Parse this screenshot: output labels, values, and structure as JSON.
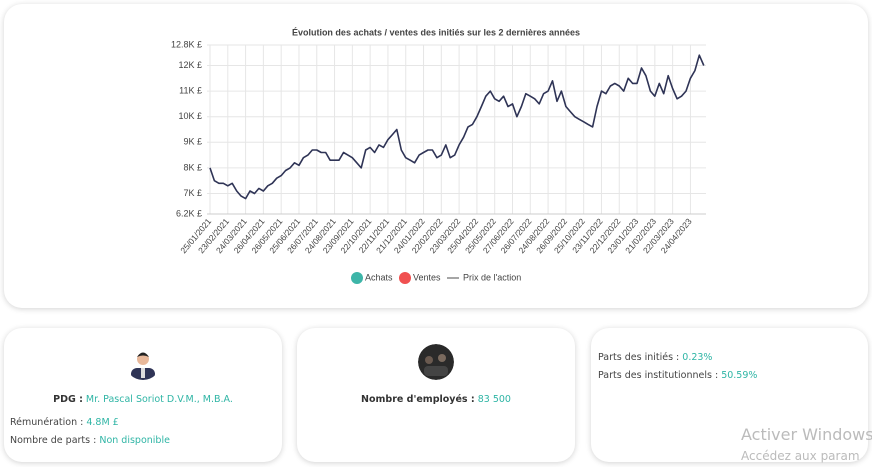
{
  "chart_data": {
    "type": "line",
    "title": "Évolution des achats / ventes des initiés sur les 2 dernières années",
    "categories": [
      "25/01/2021",
      null,
      null,
      null,
      "23/02/2021",
      null,
      null,
      null,
      "24/03/2021",
      null,
      null,
      null,
      "26/04/2021",
      null,
      null,
      null,
      "26/05/2021",
      null,
      null,
      null,
      "25/06/2021",
      null,
      null,
      null,
      "26/07/2021",
      null,
      null,
      null,
      "24/08/2021",
      null,
      null,
      null,
      "23/09/2021",
      null,
      null,
      null,
      "22/10/2021",
      null,
      null,
      null,
      "22/11/2021",
      null,
      null,
      null,
      "21/12/2021",
      null,
      null,
      null,
      "24/01/2022",
      null,
      null,
      null,
      "22/02/2022",
      null,
      null,
      null,
      "23/03/2022",
      null,
      null,
      null,
      "25/04/2022",
      null,
      null,
      null,
      "25/05/2022",
      null,
      null,
      null,
      "27/06/2022",
      null,
      null,
      null,
      "26/07/2022",
      null,
      null,
      null,
      "24/08/2022",
      null,
      null,
      null,
      "26/09/2022",
      null,
      null,
      null,
      "25/10/2022",
      null,
      null,
      null,
      "23/11/2022",
      null,
      null,
      null,
      "22/12/2022",
      null,
      null,
      null,
      "23/01/2023",
      null,
      null,
      null,
      "21/02/2023",
      null,
      null,
      null,
      "22/03/2023",
      null,
      null,
      null,
      "24/04/2023",
      null,
      null,
      null
    ],
    "series": [
      {
        "name": "Prix de l'action",
        "color": "#2f3456",
        "values": [
          8000,
          7500,
          7400,
          7400,
          7300,
          7400,
          7100,
          6900,
          6800,
          7100,
          7000,
          7200,
          7100,
          7300,
          7400,
          7600,
          7700,
          7900,
          8000,
          8200,
          8100,
          8400,
          8500,
          8700,
          8700,
          8600,
          8600,
          8300,
          8300,
          8300,
          8600,
          8500,
          8400,
          8200,
          8000,
          8700,
          8800,
          8600,
          8900,
          8800,
          9100,
          9300,
          9500,
          8700,
          8400,
          8300,
          8200,
          8500,
          8600,
          8700,
          8700,
          8400,
          8500,
          8900,
          8400,
          8500,
          8900,
          9200,
          9600,
          9700,
          10000,
          10400,
          10800,
          11000,
          10700,
          10600,
          10800,
          10400,
          10500,
          10000,
          10400,
          10900,
          10800,
          10700,
          10500,
          10900,
          11000,
          11400,
          10600,
          11000,
          10400,
          10200,
          10000,
          9900,
          9800,
          9700,
          9600,
          10400,
          11000,
          10900,
          11200,
          11300,
          11200,
          11000,
          11500,
          11300,
          11300,
          11900,
          11600,
          11000,
          10800,
          11300,
          10900,
          11600,
          11100,
          10700,
          10800,
          11000,
          11500,
          11800,
          12400,
          12000
        ]
      }
    ],
    "markers": [
      {
        "name": "Achats",
        "color": "#3db5a8"
      },
      {
        "name": "Ventes",
        "color": "#f05050"
      }
    ],
    "ylim": [
      6200,
      12800
    ],
    "yticks": [
      {
        "value": 6200,
        "label": "6.2K £"
      },
      {
        "value": 7000,
        "label": "7K £"
      },
      {
        "value": 8000,
        "label": "8K £"
      },
      {
        "value": 9000,
        "label": "9K £"
      },
      {
        "value": 10000,
        "label": "10K £"
      },
      {
        "value": 11000,
        "label": "11K £"
      },
      {
        "value": 12000,
        "label": "12K £"
      },
      {
        "value": 12800,
        "label": "12.8K £"
      }
    ],
    "grid": true
  },
  "cards": [
    {
      "lead_label": "PDG :",
      "lead_value": "Mr. Pascal Soriot D.V.M., M.B.A.",
      "rows": [
        {
          "label": "Rémunération :",
          "value": "4.8M £"
        },
        {
          "label": "Nombre de parts :",
          "value": "Non disponible"
        }
      ]
    },
    {
      "lead_label": "Nombre d'employés :",
      "lead_value": "83 500"
    },
    {
      "rows": [
        {
          "label": "Parts des initiés :",
          "value": "0.23%"
        },
        {
          "label": "Parts des institutionnels :",
          "value": "50.59%"
        }
      ]
    }
  ],
  "watermark": {
    "line1": "Activer Windows",
    "line2": "Accédez aux param"
  }
}
